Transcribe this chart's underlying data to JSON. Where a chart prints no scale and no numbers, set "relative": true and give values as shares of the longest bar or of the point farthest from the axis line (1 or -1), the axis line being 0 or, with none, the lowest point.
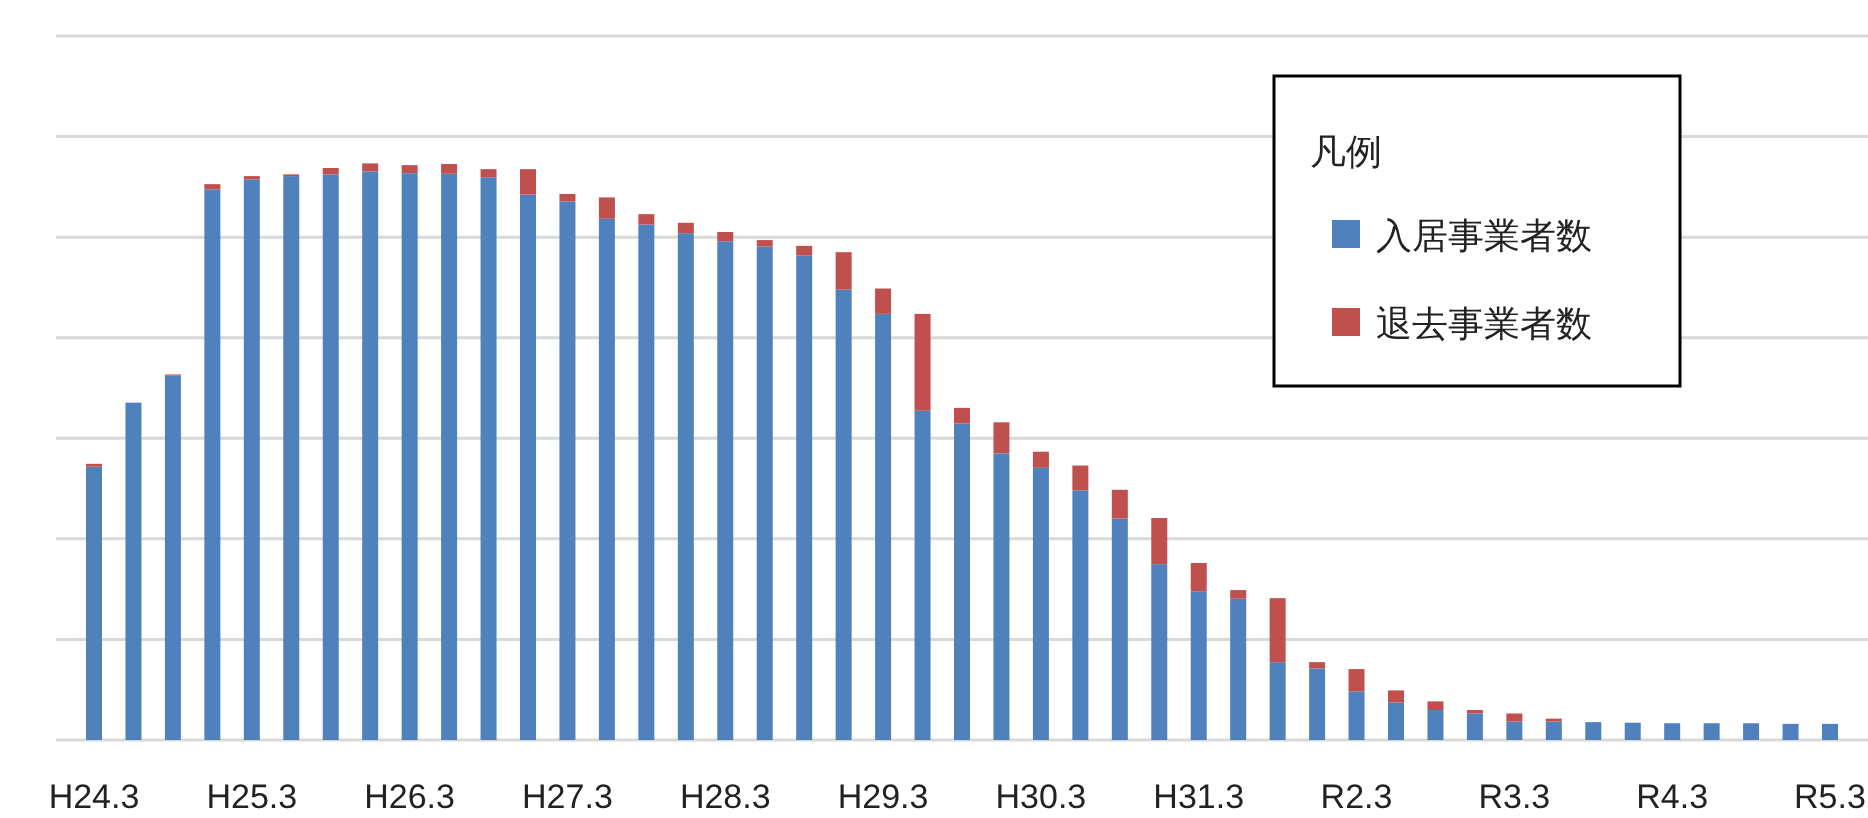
{
  "chart_data": {
    "type": "bar",
    "stacked": true,
    "relative": true,
    "grid": "y",
    "legend": "top right",
    "legend_title": "凡例",
    "categories": [
      "H24.3",
      null,
      null,
      null,
      "H25.3",
      null,
      null,
      null,
      "H26.3",
      null,
      null,
      null,
      "H27.3",
      null,
      null,
      null,
      "H28.3",
      null,
      null,
      null,
      "H29.3",
      null,
      null,
      null,
      "H30.3",
      null,
      null,
      null,
      "H31.3",
      null,
      null,
      null,
      "R2.3",
      null,
      null,
      null,
      "R3.3",
      null,
      null,
      null,
      "R4.3",
      null,
      null,
      null,
      "R5.3"
    ],
    "series": [
      {
        "name": "入居事業者数",
        "color": "#4f81bd",
        "values": [
          0.474,
          0.585,
          0.632,
          0.955,
          0.972,
          0.978,
          0.981,
          0.986,
          0.983,
          0.982,
          0.976,
          0.946,
          0.934,
          0.904,
          0.894,
          0.879,
          0.865,
          0.856,
          0.84,
          0.781,
          0.739,
          0.571,
          0.549,
          0.497,
          0.472,
          0.433,
          0.384,
          0.305,
          0.258,
          0.245,
          0.135,
          0.124,
          0.084,
          0.065,
          0.052,
          0.046,
          0.032,
          0.032,
          0.031,
          0.03,
          0.029,
          0.029,
          0.029,
          0.028,
          0.028
        ]
      },
      {
        "name": "退去事業者数",
        "color": "#c0504d",
        "values": [
          0.005,
          0,
          0.002,
          0.009,
          0.006,
          0.003,
          0.011,
          0.014,
          0.014,
          0.017,
          0.014,
          0.044,
          0.013,
          0.037,
          0.018,
          0.018,
          0.016,
          0.011,
          0.017,
          0.065,
          0.044,
          0.168,
          0.027,
          0.054,
          0.028,
          0.043,
          0.05,
          0.08,
          0.049,
          0.015,
          0.111,
          0.011,
          0.039,
          0.021,
          0.015,
          0.006,
          0.014,
          0.005,
          0,
          0,
          0,
          0,
          0,
          0,
          0
        ]
      }
    ]
  }
}
